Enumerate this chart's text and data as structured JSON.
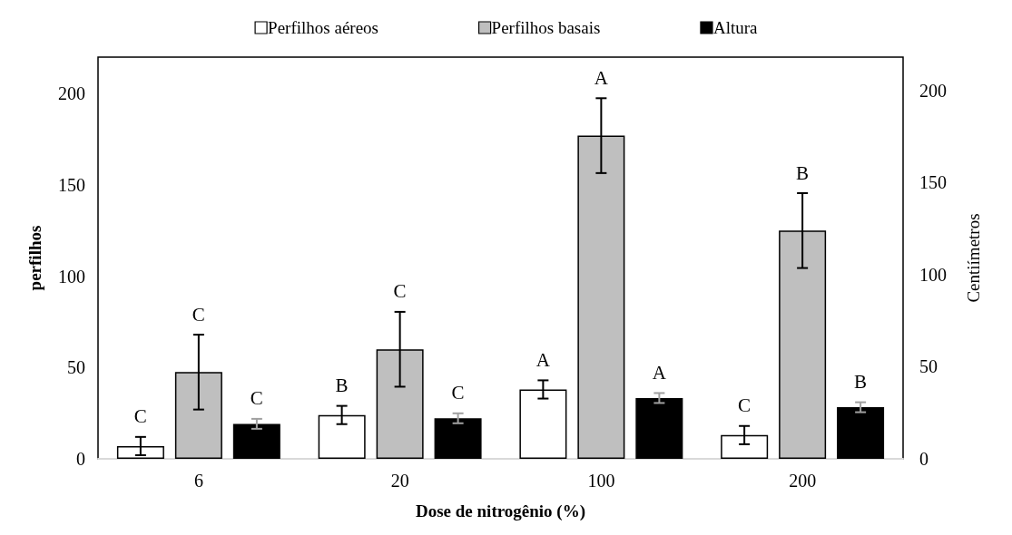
{
  "chart_data": {
    "type": "bar",
    "xlabel": "Dose de nitrogênio (%)",
    "ylabel": "perfilhos",
    "y2label": "Centiímetros",
    "categories": [
      "6",
      "20",
      "100",
      "200"
    ],
    "series": [
      {
        "name": "Perfilhos aéreos",
        "color": "#ffffff",
        "values": [
          7,
          24,
          38,
          13
        ],
        "errors": [
          5,
          5,
          5,
          5
        ],
        "value_labels": [
          "C",
          "B",
          "A",
          "C"
        ]
      },
      {
        "name": "Perfilhos basais",
        "color": "#bfbfbf",
        "values": [
          47.5,
          60,
          177,
          125
        ],
        "errors": [
          20.5,
          20.5,
          20.5,
          20.5
        ],
        "value_labels": [
          "C",
          "C",
          "A",
          "B"
        ]
      },
      {
        "name": "Altura",
        "color": "#000000",
        "axis": "y2",
        "values": [
          19,
          22,
          33,
          28
        ],
        "errors": [
          2.7,
          2.7,
          2.7,
          2.7
        ],
        "value_labels": [
          "C",
          "C",
          "A",
          "B"
        ]
      }
    ],
    "ylim": [
      0,
      220
    ],
    "yticks": [
      0,
      50,
      100,
      150,
      200
    ],
    "y2lim": [
      0,
      218
    ],
    "y2ticks": [
      0,
      50,
      100,
      150,
      200
    ],
    "grid": false,
    "legend": "top"
  }
}
